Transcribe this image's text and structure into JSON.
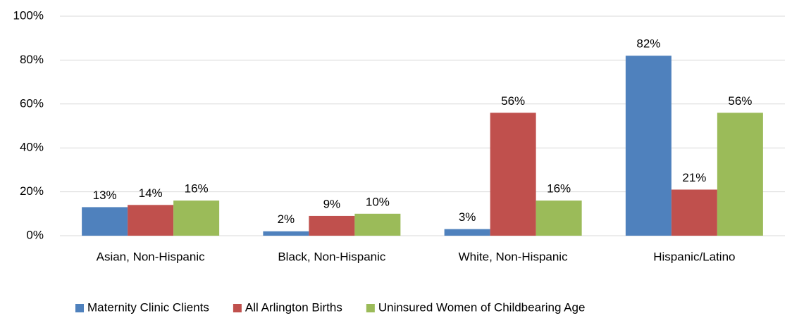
{
  "chart_data": {
    "type": "bar",
    "categories": [
      "Asian, Non-Hispanic",
      "Black, Non-Hispanic",
      "White, Non-Hispanic",
      "Hispanic/Latino"
    ],
    "series": [
      {
        "name": "Maternity Clinic Clients",
        "color": "#4f81bd",
        "values": [
          13,
          2,
          3,
          82
        ],
        "value_labels": [
          "13%",
          "2%",
          "3%",
          "82%"
        ]
      },
      {
        "name": "All Arlington Births",
        "color": "#c0504d",
        "values": [
          14,
          9,
          56,
          21
        ],
        "value_labels": [
          "14%",
          "9%",
          "56%",
          "21%"
        ]
      },
      {
        "name": "Uninsured Women of Childbearing Age",
        "color": "#9bbb59",
        "values": [
          16,
          10,
          16,
          56
        ],
        "value_labels": [
          "16%",
          "10%",
          "16%",
          "56%"
        ]
      }
    ],
    "ylim": [
      0,
      100
    ],
    "yticks": [
      {
        "value": 0,
        "label": "0%"
      },
      {
        "value": 20,
        "label": "20%"
      },
      {
        "value": 40,
        "label": "40%"
      },
      {
        "value": 60,
        "label": "60%"
      },
      {
        "value": 80,
        "label": "80%"
      },
      {
        "value": 100,
        "label": "100%"
      }
    ],
    "grid": true,
    "legend": "bottom"
  }
}
